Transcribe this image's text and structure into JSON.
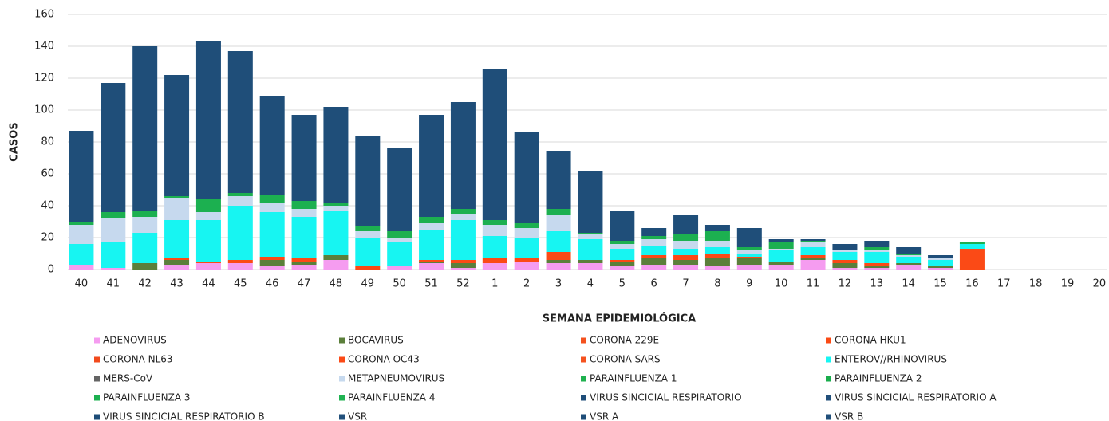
{
  "chart_data": {
    "type": "stacked_bar",
    "ylabel": "CASOS",
    "xlabel": "SEMANA EPIDEMIOLÓGICA",
    "categories": [
      "40",
      "41",
      "42",
      "43",
      "44",
      "45",
      "46",
      "47",
      "48",
      "49",
      "50",
      "51",
      "52",
      "1",
      "2",
      "3",
      "4",
      "5",
      "6",
      "7",
      "8",
      "9",
      "10",
      "11",
      "12",
      "13",
      "14",
      "15",
      "16",
      "17",
      "18",
      "19",
      "20"
    ],
    "ylim": [
      0,
      160
    ],
    "yticks": [
      0,
      20,
      40,
      60,
      80,
      100,
      120,
      140,
      160
    ],
    "grid": true,
    "series": [
      {
        "name": "ADENOVIRUS",
        "color": "#f59cf0",
        "values": [
          3,
          1,
          0,
          3,
          4,
          4,
          2,
          3,
          6,
          0,
          2,
          4,
          1,
          4,
          5,
          4,
          4,
          2,
          3,
          3,
          2,
          3,
          3,
          6,
          1,
          1,
          3,
          1,
          0,
          0,
          0,
          0,
          0
        ]
      },
      {
        "name": "BOCAVIRUS",
        "color": "#5b7f3b",
        "values": [
          0,
          0,
          4,
          3,
          0,
          0,
          4,
          2,
          3,
          0,
          0,
          1,
          3,
          0,
          0,
          2,
          2,
          3,
          4,
          3,
          5,
          4,
          2,
          1,
          3,
          1,
          1,
          1,
          0,
          0,
          0,
          0,
          0
        ]
      },
      {
        "name": "CORONA 229E",
        "color": "#f4511e",
        "values": [
          0,
          0,
          0,
          0,
          0,
          0,
          0,
          0,
          0,
          0,
          0,
          0,
          0,
          0,
          0,
          0,
          0,
          0,
          0,
          0,
          0,
          0,
          0,
          0,
          0,
          0,
          0,
          0,
          0,
          0,
          0,
          0,
          0
        ]
      },
      {
        "name": "CORONA HKU1",
        "color": "#fa4a14",
        "values": [
          0,
          0,
          0,
          0,
          0,
          0,
          0,
          0,
          0,
          0,
          0,
          0,
          0,
          0,
          0,
          0,
          0,
          0,
          0,
          0,
          0,
          0,
          0,
          0,
          0,
          0,
          0,
          0,
          0,
          0,
          0,
          0,
          0
        ]
      },
      {
        "name": "CORONA NL63",
        "color": "#f24a1c",
        "values": [
          0,
          0,
          0,
          0,
          0,
          0,
          0,
          0,
          0,
          0,
          0,
          0,
          0,
          0,
          0,
          0,
          0,
          0,
          0,
          0,
          0,
          0,
          0,
          0,
          0,
          0,
          0,
          0,
          0,
          0,
          0,
          0,
          0
        ]
      },
      {
        "name": "CORONA OC43",
        "color": "#fb4a16",
        "values": [
          0,
          0,
          0,
          1,
          1,
          2,
          2,
          2,
          0,
          2,
          0,
          1,
          2,
          3,
          2,
          5,
          0,
          1,
          2,
          3,
          3,
          1,
          0,
          2,
          2,
          2,
          0,
          0,
          13,
          0,
          0,
          0,
          0
        ]
      },
      {
        "name": "CORONA SARS",
        "color": "#f5521f",
        "values": [
          0,
          0,
          0,
          0,
          0,
          0,
          0,
          0,
          0,
          0,
          0,
          0,
          0,
          0,
          0,
          0,
          0,
          0,
          0,
          0,
          0,
          0,
          0,
          0,
          0,
          0,
          0,
          0,
          0,
          0,
          0,
          0,
          0
        ]
      },
      {
        "name": "ENTEROV//RHINOVIRUS",
        "color": "#17f5f2",
        "values": [
          13,
          16,
          19,
          24,
          26,
          34,
          28,
          26,
          28,
          18,
          15,
          19,
          25,
          14,
          13,
          13,
          13,
          7,
          6,
          4,
          4,
          2,
          7,
          5,
          5,
          7,
          4,
          4,
          3,
          0,
          0,
          0,
          0
        ]
      },
      {
        "name": "MERS-CoV",
        "color": "#646464",
        "values": [
          0,
          0,
          0,
          0,
          0,
          0,
          0,
          0,
          0,
          0,
          0,
          0,
          0,
          0,
          0,
          0,
          0,
          0,
          0,
          0,
          0,
          0,
          0,
          0,
          0,
          0,
          0,
          0,
          0,
          0,
          0,
          0,
          0
        ]
      },
      {
        "name": "METAPNEUMOVIRUS",
        "color": "#c6d9ee",
        "values": [
          12,
          15,
          10,
          14,
          5,
          6,
          6,
          5,
          3,
          4,
          3,
          4,
          4,
          7,
          6,
          10,
          3,
          3,
          4,
          5,
          4,
          2,
          1,
          3,
          1,
          1,
          1,
          1,
          0,
          0,
          0,
          0,
          0
        ]
      },
      {
        "name": "PARAINFLUENZA 1",
        "color": "#1fb14f",
        "values": [
          0,
          0,
          0,
          0,
          0,
          0,
          0,
          0,
          0,
          0,
          0,
          0,
          0,
          0,
          0,
          0,
          0,
          0,
          0,
          0,
          0,
          0,
          0,
          0,
          0,
          0,
          0,
          0,
          0,
          0,
          0,
          0,
          0
        ]
      },
      {
        "name": "PARAINFLUENZA 2",
        "color": "#19ad4c",
        "values": [
          0,
          0,
          0,
          0,
          0,
          0,
          0,
          0,
          0,
          0,
          0,
          0,
          0,
          0,
          0,
          0,
          0,
          0,
          0,
          0,
          0,
          0,
          0,
          0,
          0,
          0,
          0,
          0,
          0,
          0,
          0,
          0,
          0
        ]
      },
      {
        "name": "PARAINFLUENZA 3",
        "color": "#1cb050",
        "values": [
          2,
          4,
          4,
          1,
          8,
          2,
          5,
          5,
          2,
          3,
          4,
          4,
          3,
          3,
          3,
          4,
          1,
          2,
          2,
          4,
          6,
          2,
          4,
          1,
          0,
          2,
          1,
          0,
          1,
          0,
          0,
          0,
          0
        ]
      },
      {
        "name": "PARAINFLUENZA 4",
        "color": "#20b352",
        "values": [
          0,
          0,
          0,
          0,
          0,
          0,
          0,
          0,
          0,
          0,
          0,
          0,
          0,
          0,
          0,
          0,
          0,
          0,
          0,
          0,
          0,
          0,
          0,
          0,
          0,
          0,
          0,
          0,
          0,
          0,
          0,
          0,
          0
        ]
      },
      {
        "name": "VIRUS SINCICIAL RESPIRATORIO",
        "color": "#1f4e79",
        "values": [
          57,
          81,
          103,
          76,
          99,
          89,
          62,
          54,
          60,
          57,
          52,
          64,
          67,
          95,
          57,
          36,
          39,
          19,
          5,
          12,
          4,
          12,
          2,
          1,
          4,
          4,
          4,
          2,
          0,
          0,
          0,
          0,
          0
        ]
      },
      {
        "name": "VIRUS SINCICIAL RESPIRATORIO A",
        "color": "#214f7a",
        "values": [
          0,
          0,
          0,
          0,
          0,
          0,
          0,
          0,
          0,
          0,
          0,
          0,
          0,
          0,
          0,
          0,
          0,
          0,
          0,
          0,
          0,
          0,
          0,
          0,
          0,
          0,
          0,
          0,
          0,
          0,
          0,
          0,
          0
        ]
      },
      {
        "name": "VIRUS SINCICIAL RESPIRATORIO B",
        "color": "#1d4c77",
        "values": [
          0,
          0,
          0,
          0,
          0,
          0,
          0,
          0,
          0,
          0,
          0,
          0,
          0,
          0,
          0,
          0,
          0,
          0,
          0,
          0,
          0,
          0,
          0,
          0,
          0,
          0,
          0,
          0,
          0,
          0,
          0,
          0,
          0
        ]
      },
      {
        "name": "VSR",
        "color": "#22507b",
        "values": [
          0,
          0,
          0,
          0,
          0,
          0,
          0,
          0,
          0,
          0,
          0,
          0,
          0,
          0,
          0,
          0,
          0,
          0,
          0,
          0,
          0,
          0,
          0,
          0,
          0,
          0,
          0,
          0,
          0,
          0,
          0,
          0,
          0
        ]
      },
      {
        "name": "VSR A",
        "color": "#1e4d78",
        "values": [
          0,
          0,
          0,
          0,
          0,
          0,
          0,
          0,
          0,
          0,
          0,
          0,
          0,
          0,
          0,
          0,
          0,
          0,
          0,
          0,
          0,
          0,
          0,
          0,
          0,
          0,
          0,
          0,
          0,
          0,
          0,
          0,
          0
        ]
      },
      {
        "name": "VSR B",
        "color": "#204f7a",
        "values": [
          0,
          0,
          0,
          0,
          0,
          0,
          0,
          0,
          0,
          0,
          0,
          0,
          0,
          0,
          0,
          0,
          0,
          0,
          0,
          0,
          0,
          0,
          0,
          0,
          0,
          0,
          0,
          0,
          0,
          0,
          0,
          0,
          0
        ]
      }
    ]
  }
}
